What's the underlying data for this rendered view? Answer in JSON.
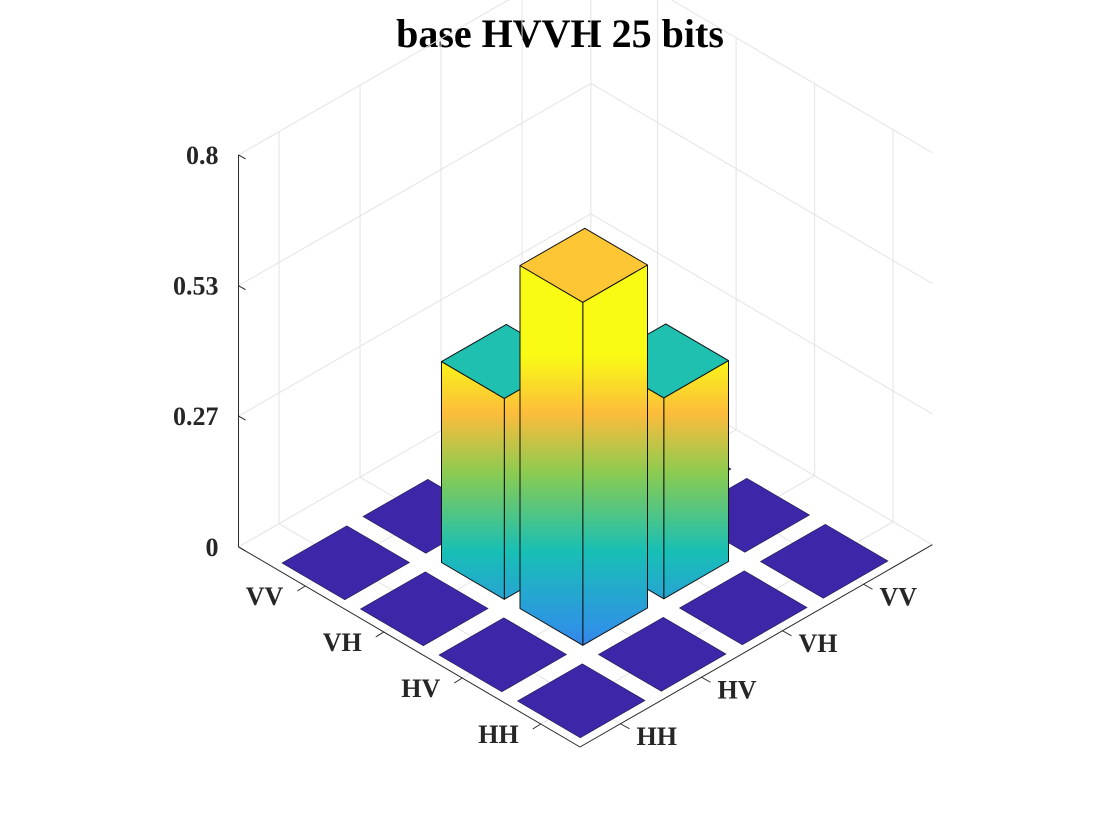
{
  "chart_data": {
    "type": "bar3",
    "title": "base HVVH 25 bits",
    "row_labels": [
      "HH",
      "HV",
      "VH",
      "VV"
    ],
    "col_labels": [
      "HH",
      "HV",
      "VH",
      "VV"
    ],
    "zlim": [
      0,
      0.8
    ],
    "z_ticks": [
      {
        "value": 0,
        "label": "0"
      },
      {
        "value": 0.267,
        "label": "0.27"
      },
      {
        "value": 0.533,
        "label": "0.53"
      },
      {
        "value": 0.8,
        "label": "0.8"
      }
    ],
    "values": [
      [
        0,
        0,
        0,
        0
      ],
      [
        0,
        0.7,
        0.41,
        0
      ],
      [
        0,
        0.41,
        0.21,
        0
      ],
      [
        0,
        0,
        0,
        0
      ]
    ],
    "colormap": "parula",
    "colors": [
      "#3e26a8",
      "#4a50f0",
      "#2f93e5",
      "#18bfb5",
      "#8ccb50",
      "#fcbc3c",
      "#f9fb14"
    ],
    "grid": true
  }
}
